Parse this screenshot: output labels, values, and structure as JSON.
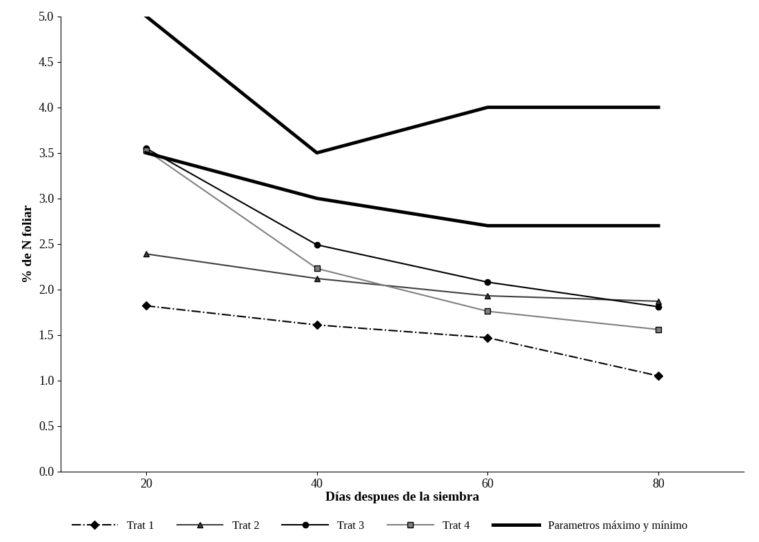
{
  "chart_data": {
    "type": "line",
    "x_label": "Días despues de la siembra",
    "y_label": "% de N foliar",
    "x": [
      20,
      40,
      60,
      80
    ],
    "xlim": [
      10,
      90
    ],
    "xticks": [
      20,
      40,
      60,
      80
    ],
    "ylim": [
      0,
      5
    ],
    "yticks": [
      {
        "value": 0,
        "label": "0.0"
      },
      0.5,
      {
        "value": 1,
        "label": "1.0"
      },
      1.5,
      {
        "value": 2,
        "label": "2.0"
      },
      2.5,
      {
        "value": 3,
        "label": "3.0"
      },
      3.5,
      {
        "value": 4,
        "label": "4.0"
      },
      4.5,
      {
        "value": 5,
        "label": "5.0"
      }
    ],
    "grid": false,
    "legend": "bottom",
    "series": [
      {
        "name": "Trat 1",
        "color": "#000000",
        "marker": "diamond",
        "line_style": "dashdot",
        "values": [
          1.82,
          1.61,
          1.47,
          1.05
        ]
      },
      {
        "name": "Trat 2",
        "color": "#404040",
        "marker": "triangle",
        "line_style": "solid",
        "values": [
          2.39,
          2.12,
          1.93,
          1.87
        ]
      },
      {
        "name": "Trat 3",
        "color": "#000000",
        "marker": "circle",
        "line_style": "solid",
        "values": [
          3.55,
          2.49,
          2.08,
          1.81
        ]
      },
      {
        "name": "Trat 4",
        "color": "#808080",
        "marker": "square",
        "line_style": "solid",
        "values": [
          3.53,
          2.23,
          1.76,
          1.56
        ]
      },
      {
        "name": "Parametros máximo y mínimo",
        "color": "#000000",
        "marker": "none",
        "line_style": "solid",
        "max": [
          5.0,
          3.5,
          4.0,
          4.0
        ],
        "min": [
          3.5,
          3.0,
          2.7,
          2.7
        ]
      }
    ]
  }
}
